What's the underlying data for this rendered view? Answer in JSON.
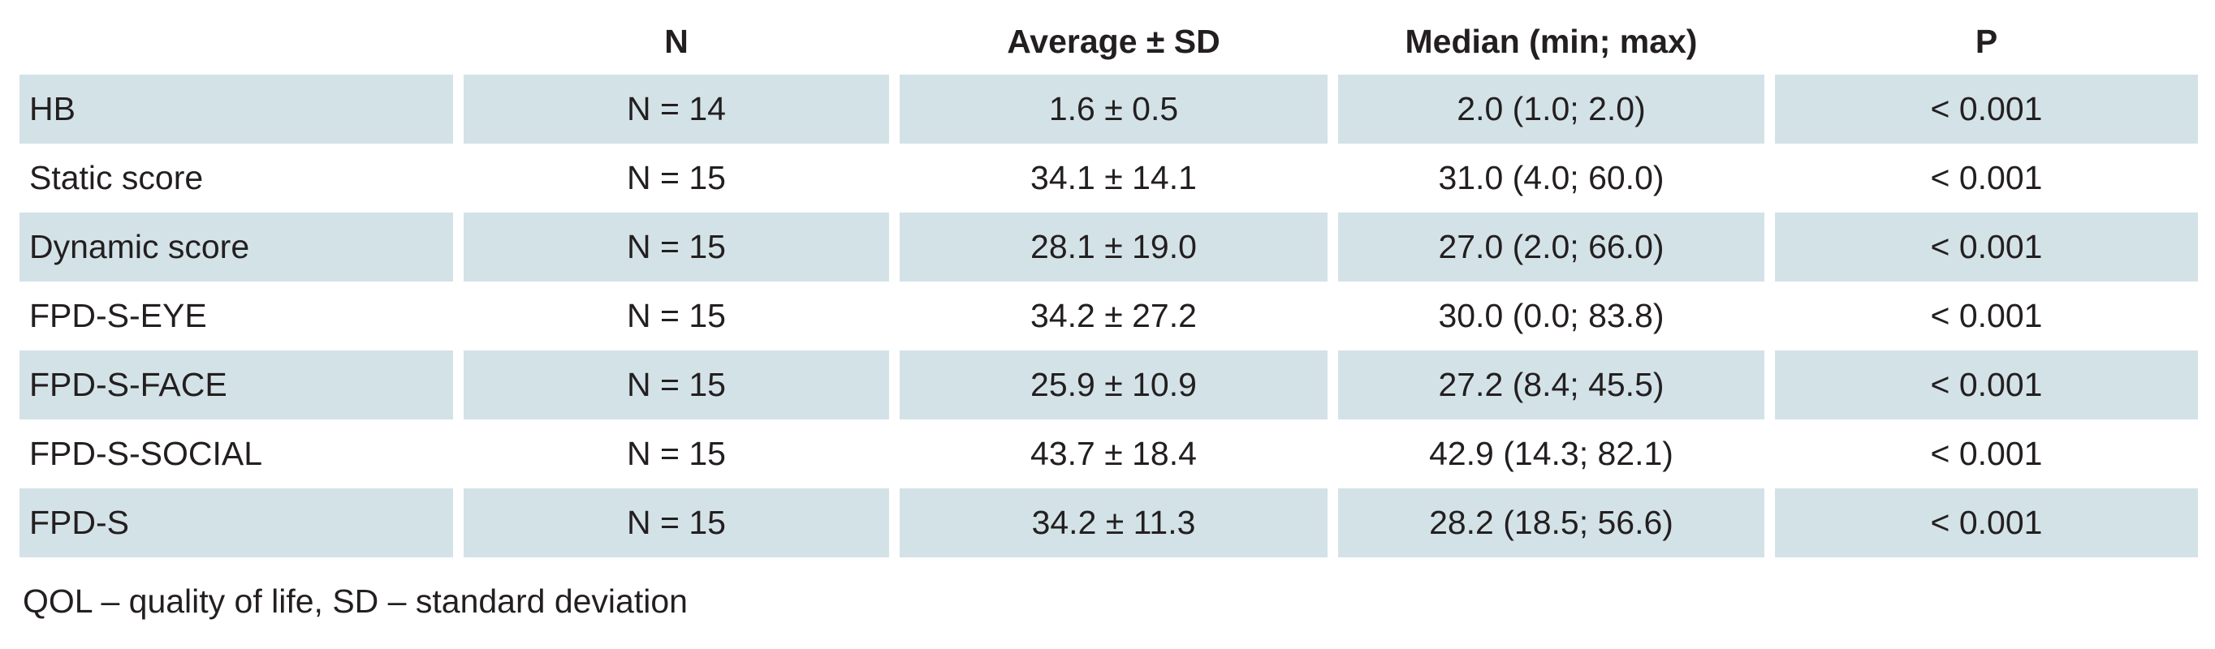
{
  "table": {
    "headers": [
      "",
      "N",
      "Average ± SD",
      "Median (min; max)",
      "P"
    ],
    "rows": [
      {
        "label": "HB",
        "n": "N = 14",
        "avg": "1.6 ± 0.5",
        "median": "2.0 (1.0; 2.0)",
        "p": "< 0.001",
        "shaded": true
      },
      {
        "label": "Static score",
        "n": "N = 15",
        "avg": "34.1 ± 14.1",
        "median": "31.0 (4.0; 60.0)",
        "p": "< 0.001",
        "shaded": false
      },
      {
        "label": "Dynamic score",
        "n": "N = 15",
        "avg": "28.1 ± 19.0",
        "median": "27.0 (2.0; 66.0)",
        "p": "< 0.001",
        "shaded": true
      },
      {
        "label": "FPD-S-EYE",
        "n": "N = 15",
        "avg": "34.2 ± 27.2",
        "median": "30.0 (0.0; 83.8)",
        "p": "< 0.001",
        "shaded": false
      },
      {
        "label": "FPD-S-FACE",
        "n": "N = 15",
        "avg": "25.9 ± 10.9",
        "median": "27.2 (8.4; 45.5)",
        "p": "< 0.001",
        "shaded": true
      },
      {
        "label": "FPD-S-SOCIAL",
        "n": "N = 15",
        "avg": "43.7 ± 18.4",
        "median": "42.9 (14.3; 82.1)",
        "p": "< 0.001",
        "shaded": false
      },
      {
        "label": "FPD-S",
        "n": "N = 15",
        "avg": "34.2 ± 11.3",
        "median": "28.2 (18.5; 56.6)",
        "p": "< 0.001",
        "shaded": true
      }
    ]
  },
  "footnote": "QOL – quality of life, SD – standard deviation",
  "colors": {
    "shade": "#d3e2e7",
    "text": "#231f20"
  }
}
